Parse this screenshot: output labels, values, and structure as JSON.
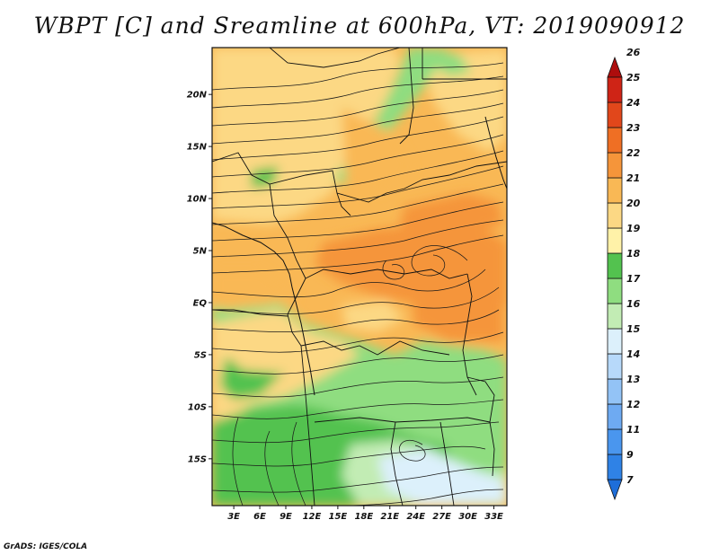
{
  "title": "WBPT [C] and Sreamline at 600hPa, VT: 2019090912",
  "credit": "GrADS: IGES/COLA",
  "map": {
    "lon_labels": [
      "3E",
      "6E",
      "9E",
      "12E",
      "15E",
      "18E",
      "21E",
      "24E",
      "27E",
      "30E",
      "33E"
    ],
    "lat_labels": [
      "20N",
      "15N",
      "10N",
      "5N",
      "EQ",
      "5S",
      "10S",
      "15S"
    ],
    "lon_values": [
      3,
      6,
      9,
      12,
      15,
      18,
      21,
      24,
      27,
      30,
      33
    ],
    "lat_values": [
      20,
      15,
      10,
      5,
      0,
      -5,
      -10,
      -15
    ],
    "lon_range": [
      0.5,
      34.5
    ],
    "lat_range": [
      -19.5,
      24.5
    ]
  },
  "colorbar": {
    "levels": [
      "7",
      "9",
      "11",
      "12",
      "13",
      "14",
      "15",
      "16",
      "17",
      "18",
      "19",
      "20",
      "21",
      "22",
      "23",
      "24",
      "25",
      "26"
    ],
    "colors": [
      "#1e6ed9",
      "#2f82e6",
      "#4a96ee",
      "#6eaaf2",
      "#93c3f6",
      "#b7d9fa",
      "#dcf0fb",
      "#c2ecb4",
      "#8fdd80",
      "#53c24f",
      "#fff2a8",
      "#fcd884",
      "#f9b855",
      "#f5953a",
      "#ef6f24",
      "#e1471b",
      "#cf2416",
      "#ad0d0d"
    ]
  }
}
